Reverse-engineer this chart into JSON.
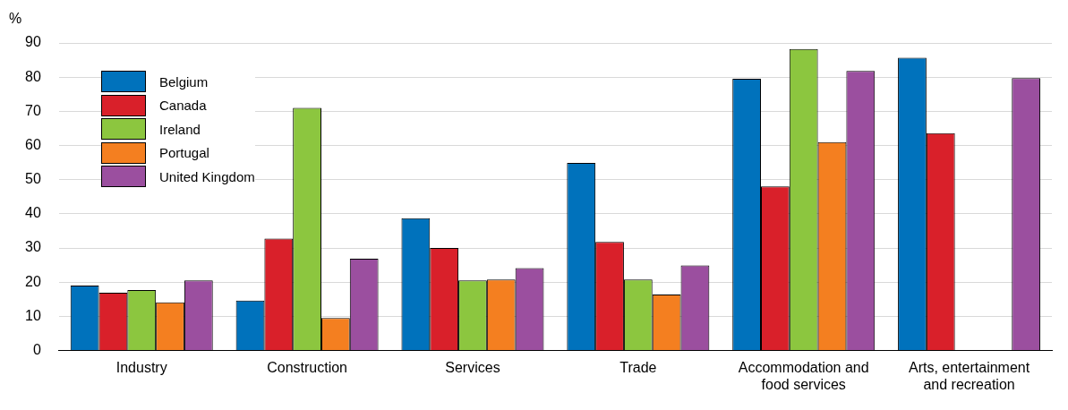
{
  "chart_data": {
    "type": "bar",
    "ylabel": "%",
    "categories": [
      "Industry",
      "Construction",
      "Services",
      "Trade",
      "Accommodation and food services",
      "Arts, entertainment and recreation"
    ],
    "series": [
      {
        "name": "Belgium",
        "color": "#0072bc",
        "values": [
          19,
          14.6,
          38.7,
          54.9,
          79.5,
          85.7
        ]
      },
      {
        "name": "Canada",
        "color": "#d9202a",
        "values": [
          16.9,
          32.8,
          30,
          31.8,
          48,
          63.6
        ]
      },
      {
        "name": "Ireland",
        "color": "#8cc63f",
        "values": [
          17.7,
          71,
          20.5,
          20.8,
          88.2,
          0
        ]
      },
      {
        "name": "Portugal",
        "color": "#f47f20",
        "values": [
          14.1,
          9.5,
          20.8,
          16.4,
          61,
          0
        ]
      },
      {
        "name": "United Kingdom",
        "color": "#9b4f9f",
        "values": [
          20.5,
          26.9,
          24.1,
          24.9,
          81.8,
          79.7
        ]
      }
    ],
    "ylim": [
      0,
      90
    ],
    "yticks": [
      0,
      10,
      20,
      30,
      40,
      50,
      60,
      70,
      80,
      90
    ],
    "grid": "y",
    "legend": "top left"
  }
}
